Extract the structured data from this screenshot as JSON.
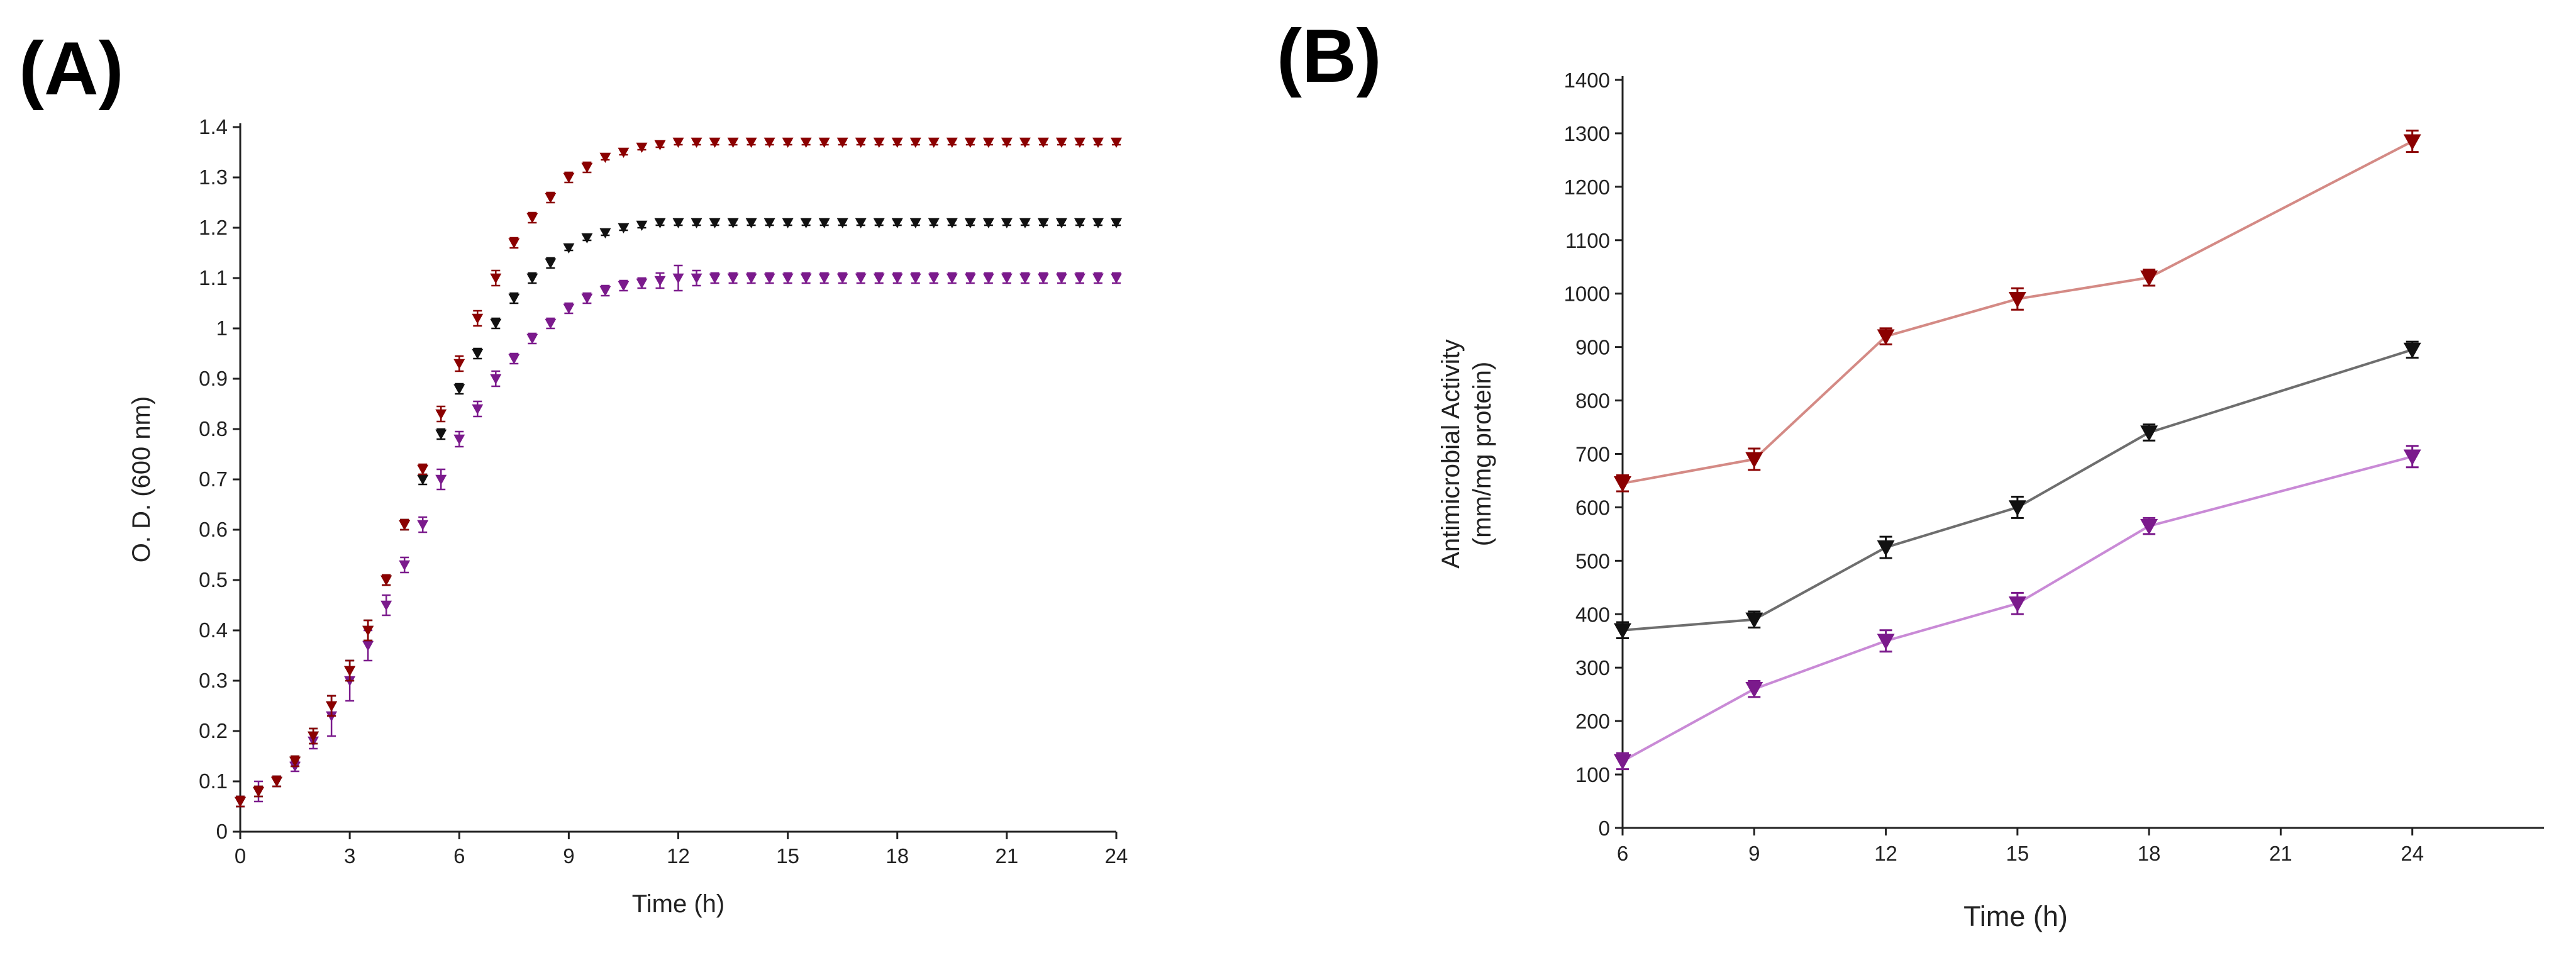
{
  "figure": {
    "panels": [
      "(A)",
      "(B)"
    ]
  },
  "colors": {
    "dark_red": "#8B0000",
    "black": "#111111",
    "purple": "#7B1A8C",
    "line_red": "#d48a85",
    "line_black": "#6e6e6e",
    "line_purple": "#c98ad6"
  },
  "chart_data": [
    {
      "panel": "(A)",
      "type": "scatter",
      "title": "",
      "xlabel": "Time (h)",
      "ylabel": "O. D. (600 nm)",
      "xlim": [
        0,
        24
      ],
      "ylim": [
        0,
        1.4
      ],
      "xticks": [
        "0",
        "3",
        "6",
        "9",
        "12",
        "15",
        "18",
        "21",
        "24"
      ],
      "yticks": [
        "0",
        "0.1",
        "0.2",
        "0.3",
        "0.4",
        "0.5",
        "0.6",
        "0.7",
        "0.8",
        "0.9",
        "1",
        "1.1",
        "1.2",
        "1.3",
        "1.4"
      ],
      "x": [
        0,
        0.5,
        1,
        1.5,
        2,
        2.5,
        3,
        3.5,
        4,
        4.5,
        5,
        5.5,
        6,
        6.5,
        7,
        7.5,
        8,
        8.5,
        9,
        9.5,
        10,
        10.5,
        11,
        11.5,
        12,
        12.5,
        13,
        13.5,
        14,
        14.5,
        15,
        15.5,
        16,
        16.5,
        17,
        17.5,
        18,
        18.5,
        19,
        19.5,
        20,
        20.5,
        21,
        21.5,
        22,
        22.5,
        23,
        23.5,
        24
      ],
      "series": [
        {
          "name": "series-dark-red",
          "color": "#8B0000",
          "values": [
            0.06,
            0.08,
            0.1,
            0.14,
            0.19,
            0.25,
            0.32,
            0.4,
            0.5,
            0.61,
            0.72,
            0.83,
            0.93,
            1.02,
            1.1,
            1.17,
            1.22,
            1.26,
            1.3,
            1.32,
            1.34,
            1.35,
            1.36,
            1.365,
            1.37,
            1.37,
            1.37,
            1.37,
            1.37,
            1.37,
            1.37,
            1.37,
            1.37,
            1.37,
            1.37,
            1.37,
            1.37,
            1.37,
            1.37,
            1.37,
            1.37,
            1.37,
            1.37,
            1.37,
            1.37,
            1.37,
            1.37,
            1.37,
            1.37
          ],
          "errors": [
            0.01,
            0.01,
            0.01,
            0.01,
            0.015,
            0.02,
            0.02,
            0.02,
            0.01,
            0.01,
            0.01,
            0.015,
            0.015,
            0.015,
            0.015,
            0.01,
            0.01,
            0.01,
            0.01,
            0.01,
            0.005,
            0.005,
            0.005,
            0.005,
            0.005,
            0.005,
            0.005,
            0.005,
            0.005,
            0.005,
            0.005,
            0.005,
            0.005,
            0.005,
            0.005,
            0.005,
            0.005,
            0.005,
            0.005,
            0.005,
            0.005,
            0.005,
            0.005,
            0.005,
            0.005,
            0.005,
            0.005,
            0.005,
            0.005
          ]
        },
        {
          "name": "series-black",
          "color": "#111111",
          "values": [
            0.06,
            0.08,
            0.1,
            0.14,
            0.19,
            0.25,
            0.32,
            0.4,
            0.5,
            0.61,
            0.7,
            0.79,
            0.88,
            0.95,
            1.01,
            1.06,
            1.1,
            1.13,
            1.16,
            1.18,
            1.19,
            1.2,
            1.205,
            1.21,
            1.21,
            1.21,
            1.21,
            1.21,
            1.21,
            1.21,
            1.21,
            1.21,
            1.21,
            1.21,
            1.21,
            1.21,
            1.21,
            1.21,
            1.21,
            1.21,
            1.21,
            1.21,
            1.21,
            1.21,
            1.21,
            1.21,
            1.21,
            1.21,
            1.21
          ],
          "errors": [
            0.01,
            0.01,
            0.01,
            0.01,
            0.015,
            0.02,
            0.02,
            0.02,
            0.01,
            0.01,
            0.01,
            0.01,
            0.01,
            0.01,
            0.01,
            0.01,
            0.01,
            0.01,
            0.005,
            0.005,
            0.005,
            0.005,
            0.005,
            0.005,
            0.005,
            0.005,
            0.005,
            0.005,
            0.005,
            0.005,
            0.005,
            0.005,
            0.005,
            0.005,
            0.005,
            0.005,
            0.005,
            0.005,
            0.005,
            0.005,
            0.005,
            0.005,
            0.005,
            0.005,
            0.005,
            0.005,
            0.005,
            0.005,
            0.005
          ]
        },
        {
          "name": "series-purple",
          "color": "#7B1A8C",
          "values": [
            0.06,
            0.08,
            0.1,
            0.13,
            0.18,
            0.23,
            0.3,
            0.37,
            0.45,
            0.53,
            0.61,
            0.7,
            0.78,
            0.84,
            0.9,
            0.94,
            0.98,
            1.01,
            1.04,
            1.06,
            1.075,
            1.085,
            1.09,
            1.095,
            1.1,
            1.1,
            1.1,
            1.1,
            1.1,
            1.1,
            1.1,
            1.1,
            1.1,
            1.1,
            1.1,
            1.1,
            1.1,
            1.1,
            1.1,
            1.1,
            1.1,
            1.1,
            1.1,
            1.1,
            1.1,
            1.1,
            1.1,
            1.1,
            1.1
          ],
          "errors": [
            0.01,
            0.02,
            0.01,
            0.01,
            0.015,
            0.04,
            0.04,
            0.03,
            0.02,
            0.015,
            0.015,
            0.02,
            0.015,
            0.015,
            0.015,
            0.01,
            0.01,
            0.01,
            0.01,
            0.01,
            0.01,
            0.01,
            0.01,
            0.015,
            0.025,
            0.015,
            0.01,
            0.01,
            0.01,
            0.01,
            0.01,
            0.01,
            0.01,
            0.01,
            0.01,
            0.01,
            0.01,
            0.01,
            0.01,
            0.01,
            0.01,
            0.01,
            0.01,
            0.01,
            0.01,
            0.01,
            0.01,
            0.01,
            0.01
          ]
        }
      ]
    },
    {
      "panel": "(B)",
      "type": "line",
      "title": "",
      "xlabel": "Time (h)",
      "ylabel": "Antimicrobial Activity (mm/mg protein)",
      "ylabel_lines": [
        "Antimicrobial Activity",
        "(mm/mg protein)"
      ],
      "xlim": [
        6,
        27
      ],
      "ylim": [
        0,
        1400
      ],
      "xticks": [
        "6",
        "9",
        "12",
        "15",
        "18",
        "21",
        "24"
      ],
      "yticks": [
        "0",
        "100",
        "200",
        "300",
        "400",
        "500",
        "600",
        "700",
        "800",
        "900",
        "1000",
        "1100",
        "1200",
        "1300",
        "1400"
      ],
      "x": [
        6,
        9,
        12,
        15,
        18,
        24
      ],
      "series": [
        {
          "name": "series-dark-red",
          "color": "#8B0000",
          "line_color": "#d48a85",
          "values": [
            645,
            690,
            920,
            990,
            1030,
            1285
          ],
          "errors": [
            15,
            20,
            15,
            20,
            15,
            20
          ]
        },
        {
          "name": "series-black",
          "color": "#111111",
          "line_color": "#6e6e6e",
          "values": [
            370,
            390,
            525,
            600,
            740,
            895
          ],
          "errors": [
            15,
            15,
            20,
            20,
            15,
            15
          ]
        },
        {
          "name": "series-purple",
          "color": "#7B1A8C",
          "line_color": "#c98ad6",
          "values": [
            125,
            260,
            350,
            420,
            565,
            695
          ],
          "errors": [
            15,
            15,
            20,
            20,
            15,
            20
          ]
        }
      ]
    }
  ]
}
